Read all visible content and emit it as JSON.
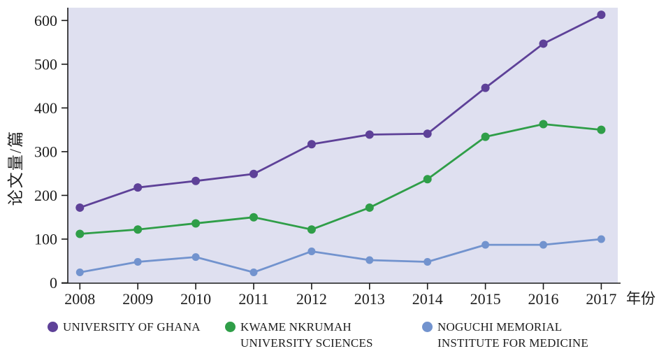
{
  "chart_data": {
    "type": "line",
    "title": "",
    "xlabel": "年份",
    "ylabel": "论文量/篇",
    "x": [
      2008,
      2009,
      2010,
      2011,
      2012,
      2013,
      2014,
      2015,
      2016,
      2017
    ],
    "ylim": [
      0,
      600
    ],
    "yticks": [
      0,
      100,
      200,
      300,
      400,
      500,
      600
    ],
    "grid": false,
    "legend_position": "bottom",
    "plot_bg_color": "#dfe0f0",
    "axis_color": "#1a1a1a",
    "series": [
      {
        "name": "UNIVERSITY OF GHANA",
        "color": "#5e4198",
        "values": [
          172,
          218,
          233,
          249,
          317,
          339,
          341,
          446,
          547,
          613
        ]
      },
      {
        "name": "KWAME NKRUMAH UNIVERSITY SCIENCES",
        "color": "#2f9e48",
        "values": [
          112,
          122,
          136,
          150,
          122,
          172,
          237,
          334,
          363,
          350
        ]
      },
      {
        "name": "NOGUCHI MEMORIAL INSTITUTE FOR MEDICINE",
        "color": "#7293ce",
        "values": [
          24,
          48,
          59,
          24,
          72,
          52,
          48,
          87,
          87,
          100
        ]
      }
    ]
  },
  "legend": {
    "items": [
      {
        "label_lines": [
          "UNIVERSITY OF GHANA"
        ]
      },
      {
        "label_lines": [
          "KWAME NKRUMAH",
          "UNIVERSITY SCIENCES"
        ]
      },
      {
        "label_lines": [
          "NOGUCHI MEMORIAL",
          "INSTITUTE FOR MEDICINE"
        ]
      }
    ]
  }
}
